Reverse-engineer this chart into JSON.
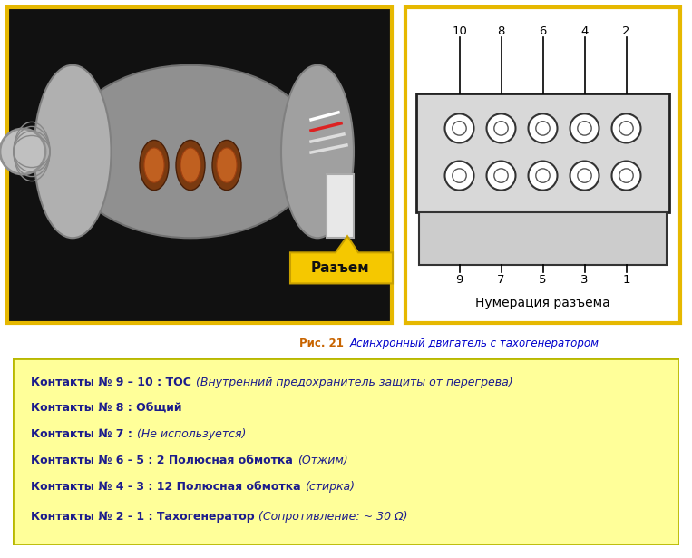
{
  "bg_color": "#ffffff",
  "left_image_border_color": "#e6b800",
  "right_panel_border_color": "#e6b800",
  "caption_bold": "Рис. 21 ",
  "caption_italic": "Асинхронный двигатель с тахогенератором",
  "caption_color_bold": "#c86400",
  "caption_color_italic": "#0000cc",
  "info_box_bg": "#ffff99",
  "info_box_border": "#b8b800",
  "lines": [
    {
      "bold": "Контакты № 9 – 10 : ТОС ",
      "normal": "(Внутренний предохранитель защиты от перегрева)"
    },
    {
      "bold": "Контакты № 8 : Общий",
      "normal": ""
    },
    {
      "bold": "Контакты № 7 : ",
      "normal": "(Не используется)"
    },
    {
      "bold": "Контакты № 6 - 5 : 2 Полюсная обмотка ",
      "normal": "(Отжим)"
    },
    {
      "bold": "Контакты № 4 - 3 : 12 Полюсная обмотка ",
      "normal": "(стирка)"
    },
    {
      "bold": "Контакты № 2 - 1 : Тахогенератор ",
      "normal": "(Сопротивление: ~ 30 Ω)"
    }
  ],
  "connector_label": "Разъем",
  "numbering_label": "Нумерация разъема",
  "top_numbers": [
    "10",
    "8",
    "6",
    "4",
    "2"
  ],
  "bottom_numbers": [
    "9",
    "7",
    "5",
    "3",
    "1"
  ],
  "footer_color": "#e6b800",
  "motor_bg": "#111111"
}
